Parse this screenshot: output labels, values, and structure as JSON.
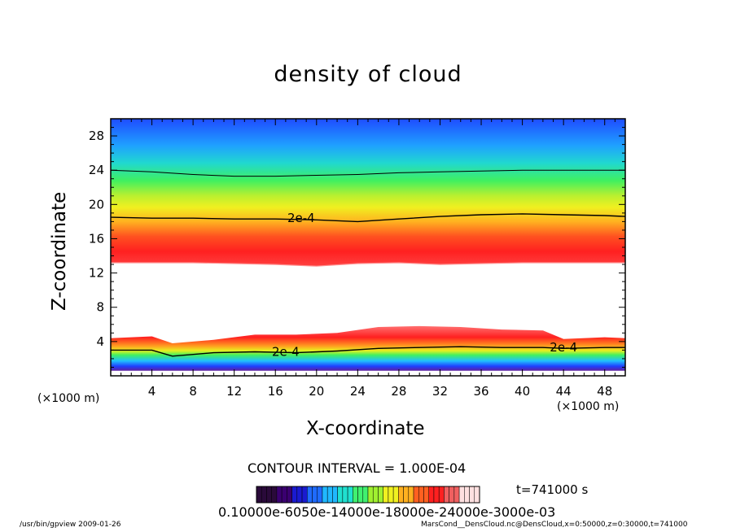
{
  "chart_data": {
    "type": "heatmap",
    "title": "density of cloud",
    "xlabel": "X-coordinate",
    "ylabel": "Z-coordinate",
    "x_unit_label": "(×1000 m)",
    "xlim": [
      0,
      50
    ],
    "ylim": [
      0,
      30
    ],
    "x_ticks": [
      "4",
      "8",
      "12",
      "16",
      "20",
      "24",
      "28",
      "32",
      "36",
      "40",
      "44",
      "48"
    ],
    "y_ticks": [
      "4",
      "8",
      "12",
      "16",
      "20",
      "24",
      "28"
    ],
    "upper_layer": {
      "x": [
        0,
        4,
        8,
        12,
        16,
        20,
        24,
        28,
        32,
        36,
        40,
        44,
        48,
        50
      ],
      "bottom": [
        13.2,
        13.2,
        13.2,
        13.1,
        13.0,
        12.8,
        13.1,
        13.2,
        13.0,
        13.1,
        13.2,
        13.2,
        13.2,
        13.2
      ],
      "contour_2e4": [
        18.5,
        18.4,
        18.4,
        18.3,
        18.3,
        18.2,
        18.0,
        18.3,
        18.6,
        18.8,
        18.9,
        18.8,
        18.7,
        18.6
      ],
      "upper_contour": [
        24.0,
        23.8,
        23.5,
        23.3,
        23.3,
        23.4,
        23.5,
        23.7,
        23.8,
        23.9,
        24.0,
        24.0,
        24.0,
        24.0
      ],
      "peak": [
        15.3,
        15.3,
        15.2,
        15.0,
        14.8,
        14.7,
        15.3,
        15.8,
        16.0,
        16.0,
        15.9,
        15.8,
        15.7,
        15.7
      ]
    },
    "lower_layer": {
      "x": [
        0,
        4,
        6,
        10,
        14,
        18,
        22,
        26,
        30,
        34,
        38,
        42,
        44,
        48,
        50
      ],
      "top": [
        4.4,
        4.6,
        3.8,
        4.2,
        4.8,
        4.8,
        5.0,
        5.7,
        5.8,
        5.7,
        5.4,
        5.3,
        4.3,
        4.5,
        4.4
      ],
      "contour_2e4": [
        3.0,
        3.0,
        2.3,
        2.7,
        2.8,
        2.7,
        2.9,
        3.2,
        3.3,
        3.4,
        3.3,
        3.3,
        3.2,
        3.3,
        3.3
      ],
      "bottom": [
        0.6,
        0.6,
        0.6,
        0.6,
        0.6,
        0.6,
        0.6,
        0.6,
        0.6,
        0.6,
        0.6,
        0.6,
        0.6,
        0.6,
        0.6
      ]
    },
    "contour_labels": [
      {
        "text": "2e-4",
        "x": 18.5,
        "y": 18.4
      },
      {
        "text": "2e-4",
        "x": 17.0,
        "y": 2.8
      },
      {
        "text": "2e-4",
        "x": 44.0,
        "y": 3.3
      }
    ],
    "colorbar": {
      "colors": [
        "#2a0a3a",
        "#3a0070",
        "#1a1ad0",
        "#1f6bff",
        "#20b8ff",
        "#20e0d0",
        "#40f070",
        "#a0f030",
        "#f0f020",
        "#ffb020",
        "#ff6020",
        "#ff2020",
        "#f06060",
        "#ffe0e0"
      ],
      "labels_text": "0.10000e-6050e-14000e-18000e-24000e-3000e-03"
    }
  },
  "contour_interval": "CONTOUR INTERVAL = 1.000E-04",
  "time_label": "t=741000  s",
  "footer_left": "/usr/bin/gpview   2009-01-26",
  "footer_right": "MarsCond__DensCloud.nc@DensCloud,x=0:50000,z=0:30000,t=741000"
}
